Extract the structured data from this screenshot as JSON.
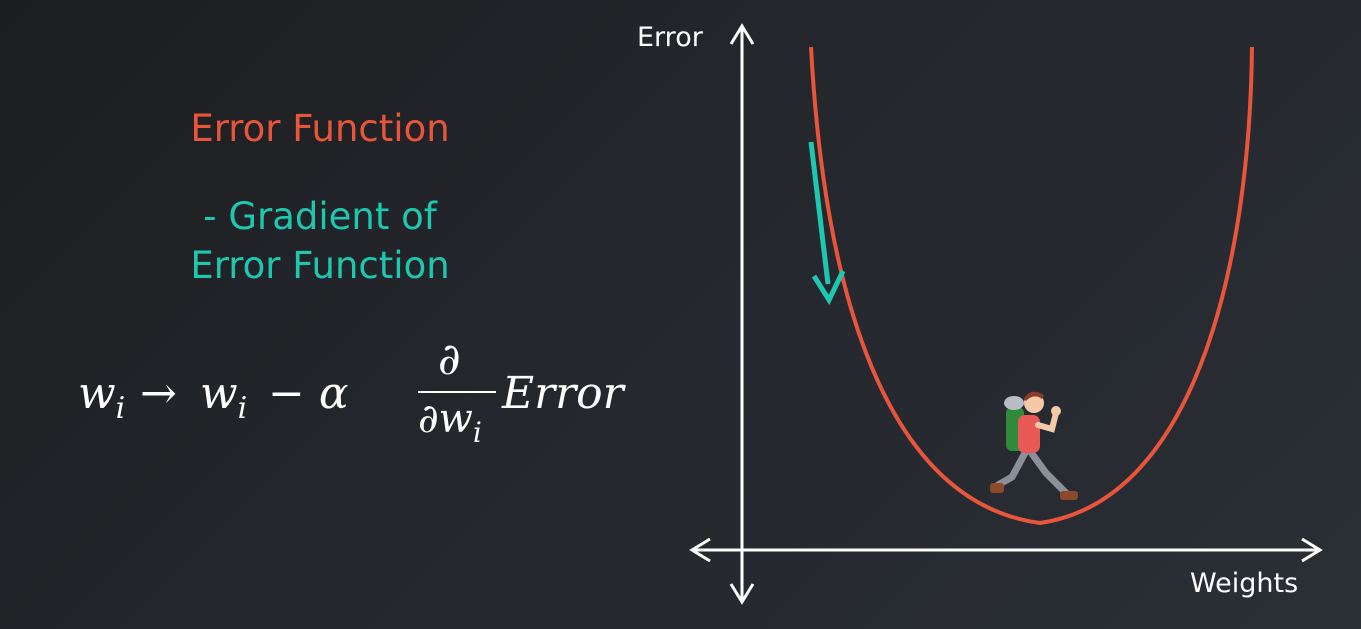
{
  "labels": {
    "error_function": "Error Function",
    "gradient_line1": "- Gradient of",
    "gradient_line2": "Error Function"
  },
  "formula": {
    "w": "w",
    "i": "i",
    "arrow": "→",
    "minus_alpha": "− α",
    "partial": "∂",
    "den_w": "∂w",
    "error": "Error"
  },
  "axes": {
    "y_label": "Error",
    "x_label": "Weights"
  },
  "colors": {
    "orange": "#e8553a",
    "teal": "#1ec8b0",
    "white": "#ffffff"
  },
  "icons": {
    "hiker": "hiker-icon"
  }
}
